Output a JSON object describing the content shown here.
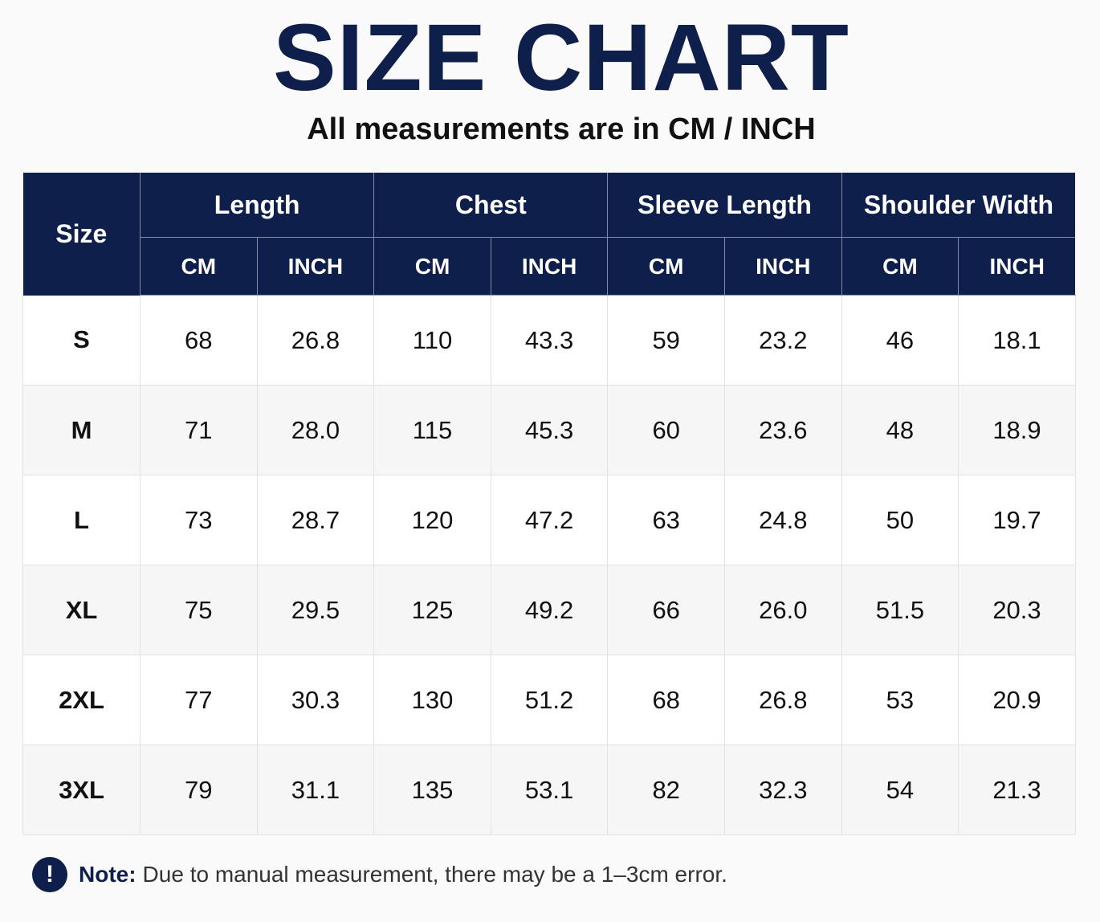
{
  "title": "SIZE CHART",
  "subtitle": "All measurements are in CM / INCH",
  "table": {
    "size_header": "Size",
    "groups": [
      "Length",
      "Chest",
      "Sleeve Length",
      "Shoulder Width"
    ],
    "units": [
      "CM",
      "INCH",
      "CM",
      "INCH",
      "CM",
      "INCH",
      "CM",
      "INCH"
    ],
    "rows": [
      {
        "size": "S",
        "values": [
          "68",
          "26.8",
          "110",
          "43.3",
          "59",
          "23.2",
          "46",
          "18.1"
        ]
      },
      {
        "size": "M",
        "values": [
          "71",
          "28.0",
          "115",
          "45.3",
          "60",
          "23.6",
          "48",
          "18.9"
        ]
      },
      {
        "size": "L",
        "values": [
          "73",
          "28.7",
          "120",
          "47.2",
          "63",
          "24.8",
          "50",
          "19.7"
        ]
      },
      {
        "size": "XL",
        "values": [
          "75",
          "29.5",
          "125",
          "49.2",
          "66",
          "26.0",
          "51.5",
          "20.3"
        ]
      },
      {
        "size": "2XL",
        "values": [
          "77",
          "30.3",
          "130",
          "51.2",
          "68",
          "26.8",
          "53",
          "20.9"
        ]
      },
      {
        "size": "3XL",
        "values": [
          "79",
          "31.1",
          "135",
          "53.1",
          "82",
          "32.3",
          "54",
          "21.3"
        ]
      }
    ]
  },
  "note": {
    "icon": "info-icon",
    "icon_glyph": "!",
    "label": "Note:",
    "text": "Due to manual measurement, there may be a 1–3cm error."
  },
  "colors": {
    "header_bg": "#0f1f4b",
    "title_color": "#0f1f4b"
  }
}
